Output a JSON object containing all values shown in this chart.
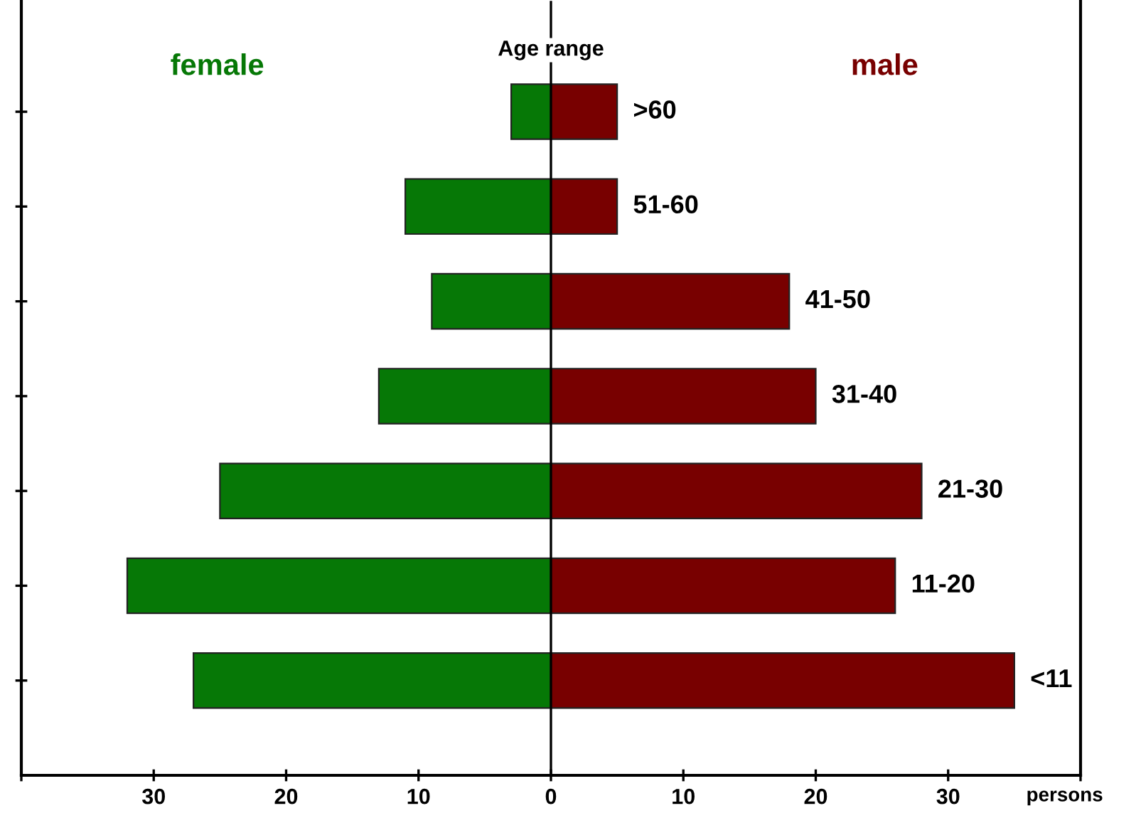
{
  "chart_data": {
    "type": "bar",
    "orientation": "horizontal",
    "ylabel": "Age range",
    "xlabel": "persons",
    "categories": [
      ">60",
      "51-60",
      "41-50",
      "31-40",
      "21-30",
      "11-20",
      "<11"
    ],
    "series": [
      {
        "name": "female",
        "color": "#067806",
        "values": [
          -3,
          -11,
          -9,
          -13,
          -25,
          -32,
          -27
        ]
      },
      {
        "name": "male",
        "color": "#780000",
        "values": [
          5,
          5,
          18,
          20,
          28,
          26,
          35
        ]
      }
    ],
    "xlim": [
      -40,
      40
    ],
    "xticks": [
      {
        "value": -40,
        "label": null
      },
      {
        "value": -30,
        "label": "30"
      },
      {
        "value": -20,
        "label": "20"
      },
      {
        "value": -10,
        "label": "10"
      },
      0,
      10,
      20,
      30,
      {
        "value": 40,
        "label": null
      }
    ],
    "ref_lines": [
      {
        "axis": "x",
        "value": 0,
        "color": "#000000"
      }
    ],
    "tick_labels": "x",
    "stacked": true,
    "grid": false,
    "legend": false
  }
}
